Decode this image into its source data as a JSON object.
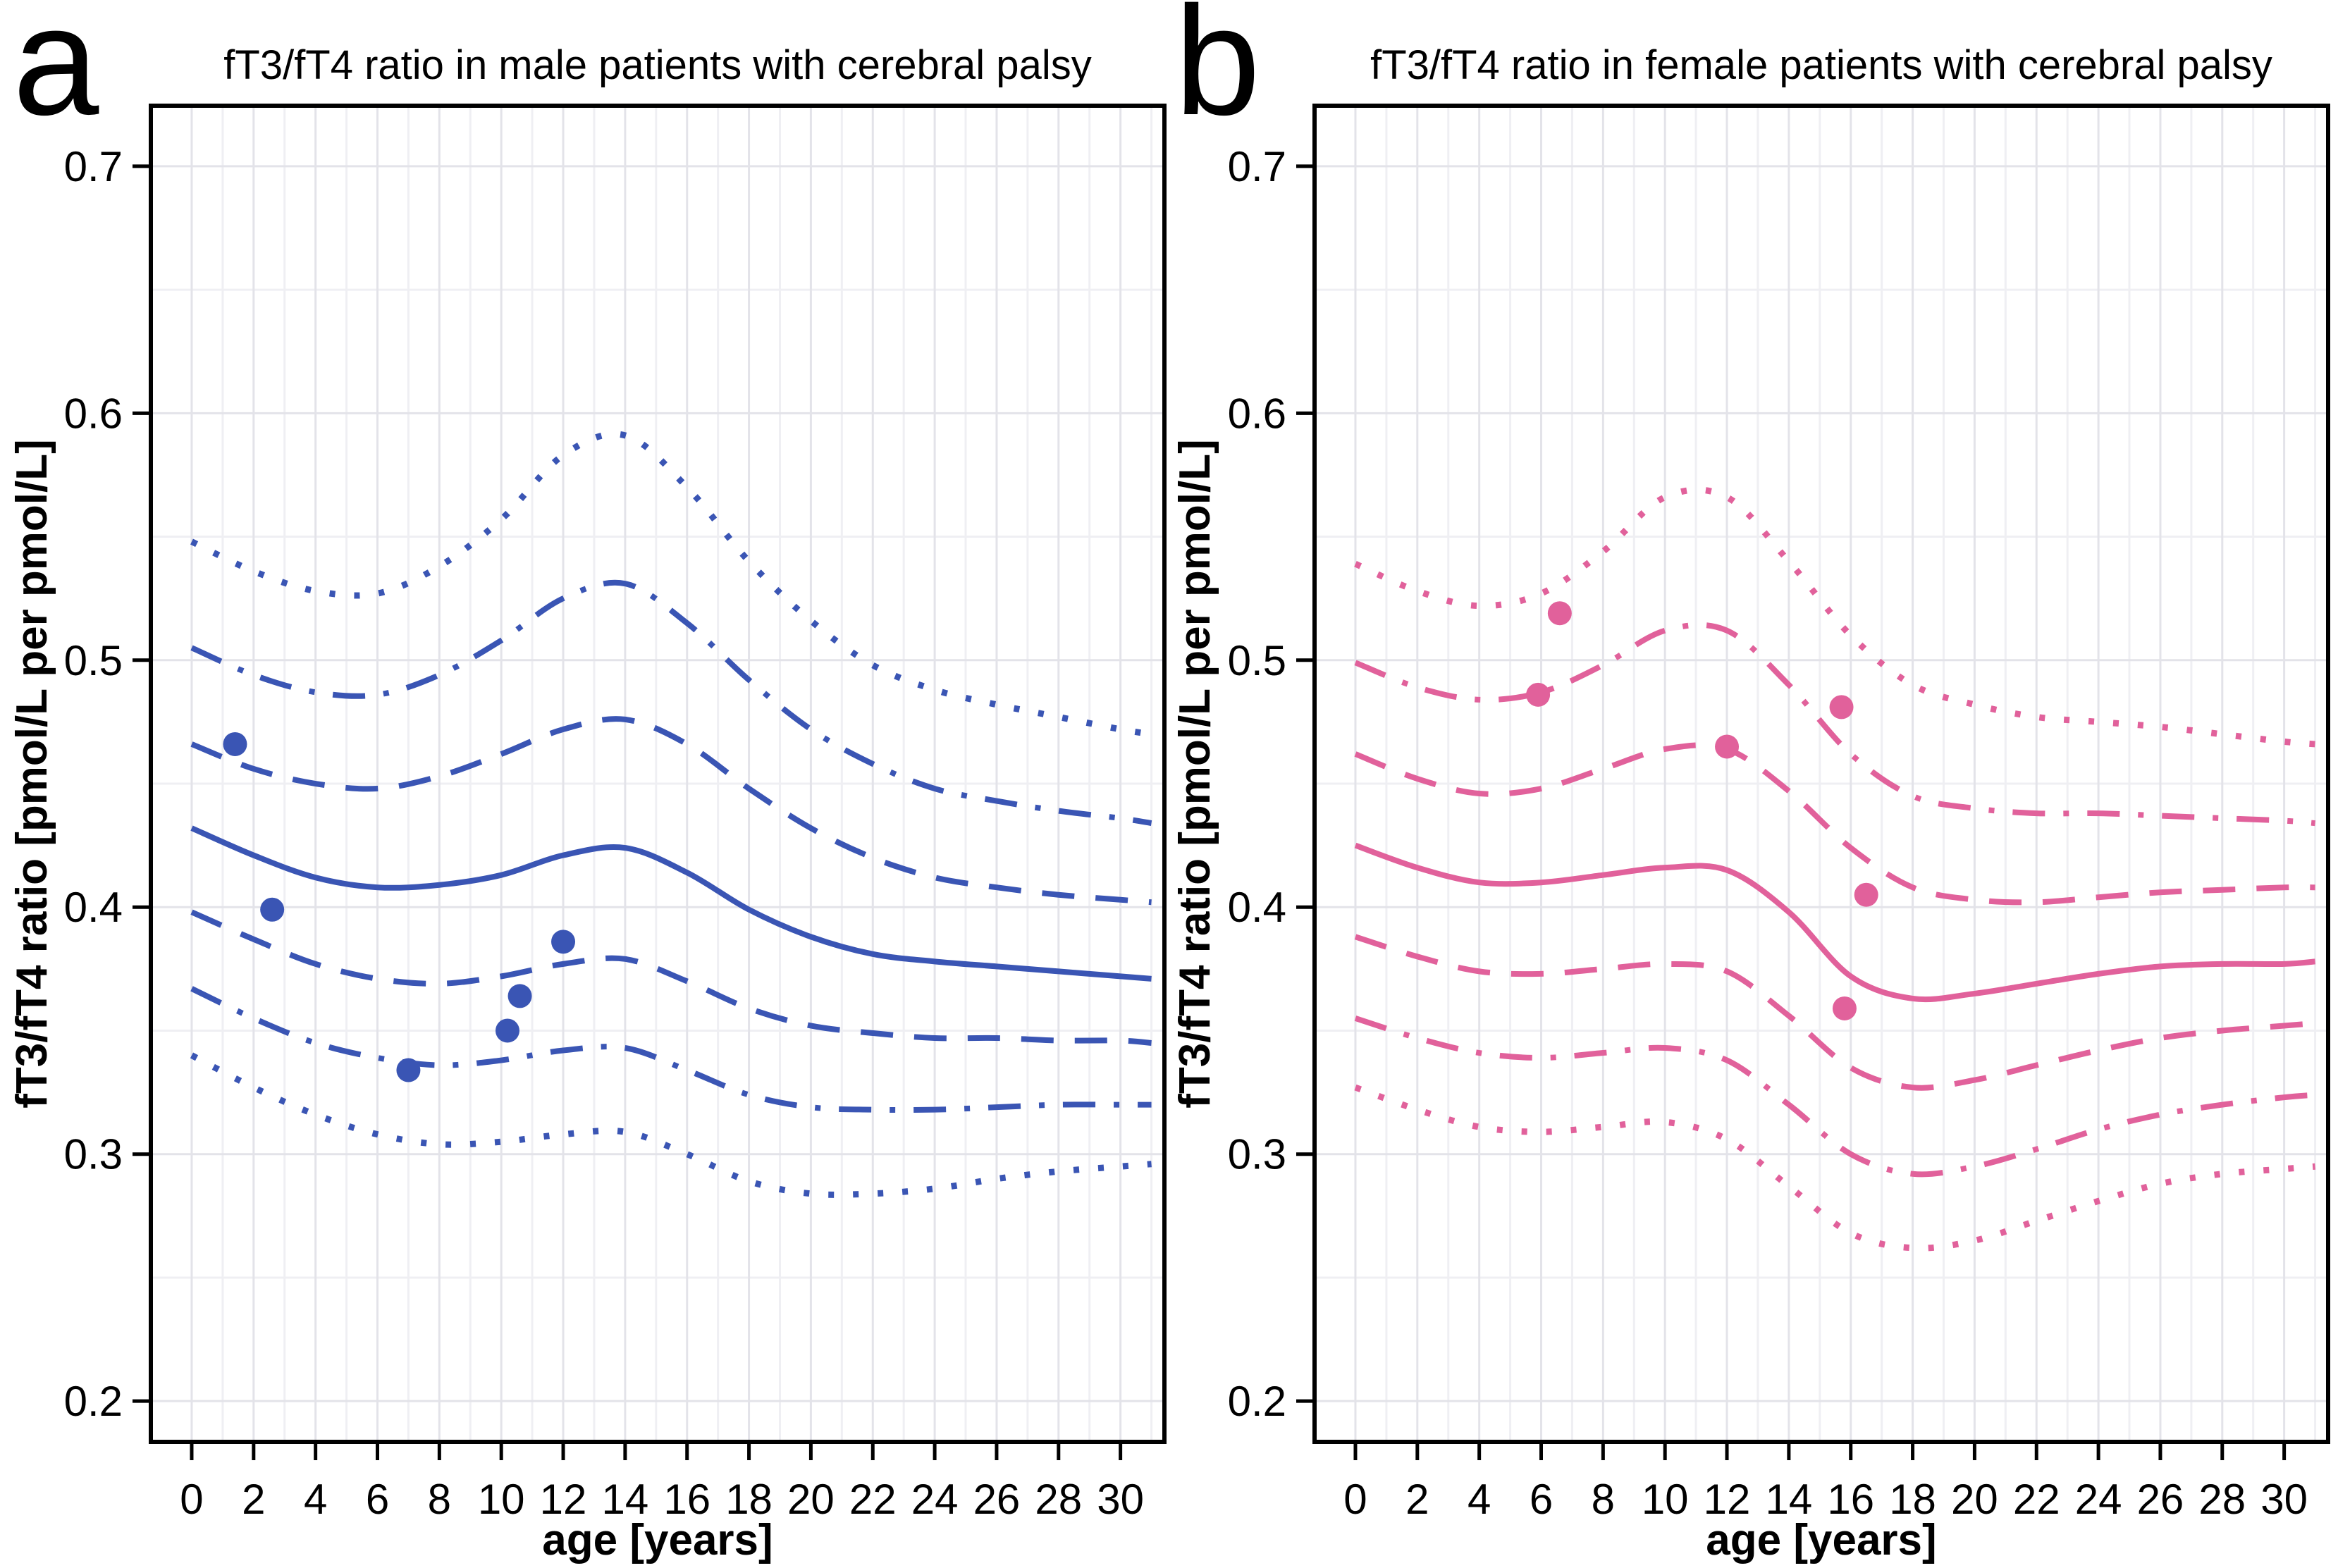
{
  "figure": {
    "background": "#ffffff",
    "grid_major_color": "#e3e3e9",
    "grid_minor_color": "#efeff3",
    "border_color": "#000000",
    "text_color": "#000000"
  },
  "chart_data": [
    {
      "panel_letter": "a",
      "type": "line",
      "title": "fT3/fT4 ratio in male patients with cerebral palsy",
      "xlabel": "age [years]",
      "ylabel": "fT3/fT4 ratio [pmol/L per pmol/L]",
      "color": "#3a55b4",
      "xlim": [
        -1.32,
        31.42
      ],
      "ylim": [
        0.1835,
        0.7245
      ],
      "xticks": [
        0,
        2,
        4,
        6,
        8,
        10,
        12,
        14,
        16,
        18,
        20,
        22,
        24,
        26,
        28,
        30
      ],
      "yticks": [
        "0.2",
        "0.3",
        "0.4",
        "0.5",
        "0.6",
        "0.7"
      ],
      "ytick_values": [
        0.2,
        0.3,
        0.4,
        0.5,
        0.6,
        0.7
      ],
      "grid": {
        "x_minor_step": 1,
        "y_minor_step": 0.05
      },
      "x": [
        0,
        2,
        4,
        6,
        8,
        10,
        12,
        14,
        16,
        18,
        20,
        22,
        24,
        26,
        28,
        30,
        31
      ],
      "series": [
        {
          "name": "upper-dotted",
          "style": "dotted",
          "values": [
            0.548,
            0.536,
            0.528,
            0.527,
            0.538,
            0.557,
            0.583,
            0.591,
            0.57,
            0.54,
            0.516,
            0.498,
            0.488,
            0.482,
            0.477,
            0.472,
            0.47
          ]
        },
        {
          "name": "upper-dashdot",
          "style": "dashdot",
          "values": [
            0.505,
            0.494,
            0.487,
            0.486,
            0.494,
            0.508,
            0.525,
            0.531,
            0.515,
            0.492,
            0.472,
            0.458,
            0.448,
            0.443,
            0.439,
            0.436,
            0.434
          ]
        },
        {
          "name": "upper-dashed",
          "style": "dashed",
          "values": [
            0.466,
            0.456,
            0.45,
            0.448,
            0.453,
            0.462,
            0.472,
            0.476,
            0.466,
            0.448,
            0.432,
            0.42,
            0.412,
            0.408,
            0.405,
            0.403,
            0.402
          ]
        },
        {
          "name": "median-solid",
          "style": "solid",
          "values": [
            0.432,
            0.421,
            0.412,
            0.408,
            0.409,
            0.413,
            0.421,
            0.424,
            0.414,
            0.399,
            0.388,
            0.381,
            0.378,
            0.376,
            0.374,
            0.372,
            0.371
          ]
        },
        {
          "name": "lower-dashed",
          "style": "dashed",
          "values": [
            0.398,
            0.387,
            0.377,
            0.371,
            0.369,
            0.372,
            0.377,
            0.379,
            0.37,
            0.359,
            0.352,
            0.349,
            0.347,
            0.347,
            0.346,
            0.346,
            0.345
          ]
        },
        {
          "name": "lower-dashdot",
          "style": "dashdot",
          "values": [
            0.367,
            0.355,
            0.345,
            0.339,
            0.336,
            0.338,
            0.342,
            0.343,
            0.334,
            0.324,
            0.319,
            0.318,
            0.318,
            0.319,
            0.32,
            0.32,
            0.32
          ]
        },
        {
          "name": "lower-dotted",
          "style": "dotted",
          "values": [
            0.34,
            0.327,
            0.316,
            0.308,
            0.304,
            0.305,
            0.308,
            0.309,
            0.3,
            0.289,
            0.284,
            0.284,
            0.286,
            0.29,
            0.293,
            0.295,
            0.296
          ]
        }
      ],
      "points": [
        [
          1.4,
          0.466
        ],
        [
          2.6,
          0.399
        ],
        [
          7.0,
          0.334
        ],
        [
          10.2,
          0.35
        ],
        [
          10.6,
          0.364
        ],
        [
          12.0,
          0.386
        ]
      ]
    },
    {
      "panel_letter": "b",
      "type": "line",
      "title": "fT3/fT4 ratio in female patients with cerebral palsy",
      "xlabel": "age [years]",
      "ylabel": "fT3/fT4 ratio [pmol/L per pmol/L]",
      "color": "#e1619b",
      "xlim": [
        -1.32,
        31.42
      ],
      "ylim": [
        0.1835,
        0.7245
      ],
      "xticks": [
        0,
        2,
        4,
        6,
        8,
        10,
        12,
        14,
        16,
        18,
        20,
        22,
        24,
        26,
        28,
        30
      ],
      "yticks": [
        "0.2",
        "0.3",
        "0.4",
        "0.5",
        "0.6",
        "0.7"
      ],
      "ytick_values": [
        0.2,
        0.3,
        0.4,
        0.5,
        0.6,
        0.7
      ],
      "grid": {
        "x_minor_step": 1,
        "y_minor_step": 0.05
      },
      "x": [
        0,
        2,
        4,
        6,
        8,
        10,
        12,
        14,
        16,
        18,
        20,
        22,
        24,
        26,
        28,
        30,
        31
      ],
      "series": [
        {
          "name": "upper-dotted",
          "style": "dotted",
          "values": [
            0.539,
            0.528,
            0.522,
            0.527,
            0.544,
            0.566,
            0.566,
            0.54,
            0.51,
            0.49,
            0.482,
            0.477,
            0.475,
            0.473,
            0.47,
            0.467,
            0.466
          ]
        },
        {
          "name": "upper-dashdot",
          "style": "dashdot",
          "values": [
            0.499,
            0.489,
            0.484,
            0.487,
            0.498,
            0.512,
            0.512,
            0.49,
            0.462,
            0.445,
            0.44,
            0.438,
            0.438,
            0.437,
            0.436,
            0.435,
            0.434
          ]
        },
        {
          "name": "upper-dashed",
          "style": "dashed",
          "values": [
            0.462,
            0.452,
            0.446,
            0.448,
            0.456,
            0.464,
            0.464,
            0.447,
            0.424,
            0.408,
            0.403,
            0.402,
            0.404,
            0.406,
            0.407,
            0.408,
            0.408
          ]
        },
        {
          "name": "median-solid",
          "style": "solid",
          "values": [
            0.425,
            0.416,
            0.41,
            0.41,
            0.413,
            0.416,
            0.415,
            0.398,
            0.372,
            0.363,
            0.365,
            0.369,
            0.373,
            0.376,
            0.377,
            0.377,
            0.378
          ]
        },
        {
          "name": "lower-dashed",
          "style": "dashed",
          "values": [
            0.388,
            0.38,
            0.374,
            0.373,
            0.375,
            0.377,
            0.374,
            0.356,
            0.335,
            0.327,
            0.33,
            0.336,
            0.342,
            0.347,
            0.35,
            0.352,
            0.353
          ]
        },
        {
          "name": "lower-dashdot",
          "style": "dashdot",
          "values": [
            0.355,
            0.347,
            0.341,
            0.339,
            0.341,
            0.343,
            0.338,
            0.32,
            0.3,
            0.292,
            0.295,
            0.302,
            0.31,
            0.316,
            0.32,
            0.323,
            0.324
          ]
        },
        {
          "name": "lower-dotted",
          "style": "dotted",
          "values": [
            0.327,
            0.318,
            0.311,
            0.309,
            0.311,
            0.313,
            0.306,
            0.287,
            0.268,
            0.262,
            0.265,
            0.273,
            0.281,
            0.288,
            0.292,
            0.294,
            0.295
          ]
        }
      ],
      "points": [
        [
          5.9,
          0.486
        ],
        [
          6.6,
          0.519
        ],
        [
          12.0,
          0.465
        ],
        [
          15.7,
          0.481
        ],
        [
          16.5,
          0.405
        ],
        [
          15.8,
          0.359
        ]
      ]
    }
  ]
}
